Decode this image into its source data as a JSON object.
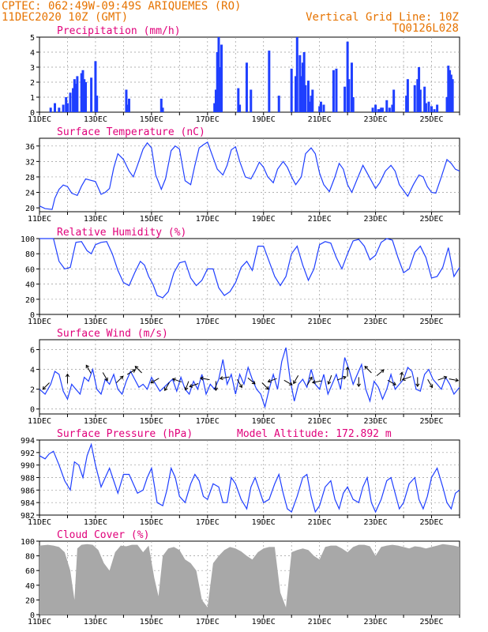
{
  "header": {
    "line1": "CPTEC:  062:49W-09:49S  ARIQUEMES (RO)",
    "line2": "11DEC2020 10Z (GMT)",
    "right1": "Vertical Grid Line: 10Z",
    "right2": "TQ0126L028"
  },
  "colors": {
    "header": "#e67300",
    "title": "#e0007a",
    "series": "#1f3fff",
    "cloud": "#a8a8a8",
    "arrow": "#000000",
    "grid": "#999999"
  },
  "x_axis": {
    "labels": [
      "11DEC",
      "13DEC",
      "15DEC",
      "17DEC",
      "19DEC",
      "21DEC",
      "23DEC",
      "25DEC"
    ],
    "label_days": [
      0,
      2,
      4,
      6,
      8,
      10,
      12,
      14
    ],
    "start": "2020-12-11T10Z",
    "end_day": 15
  },
  "chart_data": [
    {
      "id": "precip",
      "type": "bar",
      "title": "Precipitation (mm/h)",
      "ylim": [
        0,
        5
      ],
      "yticks": [
        0,
        1,
        2,
        3,
        4,
        5
      ],
      "x_unit": "days since 11DEC2020 10Z",
      "x": [
        0.4,
        0.55,
        0.7,
        0.85,
        0.95,
        1.0,
        1.1,
        1.2,
        1.25,
        1.3,
        1.35,
        1.5,
        1.55,
        1.6,
        1.65,
        1.85,
        2.0,
        2.05,
        3.1,
        3.15,
        3.2,
        4.35,
        4.4,
        6.25,
        6.3,
        6.35,
        6.4,
        6.45,
        6.5,
        7.1,
        7.15,
        7.4,
        7.55,
        8.2,
        8.55,
        9.0,
        9.15,
        9.2,
        9.3,
        9.35,
        9.4,
        9.45,
        9.5,
        9.6,
        9.65,
        9.7,
        9.75,
        10.0,
        10.05,
        10.15,
        10.5,
        10.6,
        10.9,
        11.0,
        11.05,
        11.15,
        11.2,
        11.9,
        12.0,
        12.1,
        12.15,
        12.2,
        12.25,
        12.4,
        12.5,
        12.6,
        12.65,
        13.1,
        13.15,
        13.4,
        13.5,
        13.55,
        13.6,
        13.75,
        13.8,
        13.9,
        14.0,
        14.1,
        14.2,
        14.55,
        14.6,
        14.65,
        14.7,
        14.75
      ],
      "values": [
        0.3,
        0.6,
        0.3,
        0.5,
        1.0,
        0.6,
        1.3,
        1.6,
        2.2,
        1.9,
        2.4,
        2.6,
        2.8,
        2.2,
        2.0,
        2.3,
        3.4,
        1.1,
        1.5,
        0.5,
        0.9,
        0.9,
        0.3,
        0.6,
        1.5,
        4.0,
        5.0,
        3.0,
        4.5,
        1.6,
        0.5,
        3.3,
        1.5,
        4.1,
        1.1,
        2.9,
        2.4,
        5.0,
        3.8,
        2.4,
        3.3,
        4.0,
        1.8,
        2.1,
        0.7,
        1.1,
        1.5,
        0.4,
        0.7,
        0.5,
        2.8,
        2.9,
        1.7,
        4.7,
        2.2,
        3.3,
        1.0,
        0.3,
        0.5,
        0.2,
        0.2,
        0.3,
        0.3,
        0.8,
        0.3,
        0.5,
        1.5,
        1.1,
        2.2,
        1.8,
        2.2,
        3.0,
        1.5,
        1.7,
        0.6,
        0.7,
        0.4,
        0.2,
        0.5,
        1.0,
        3.1,
        2.8,
        2.5,
        2.2
      ],
      "xlabel": "",
      "ylabel": ""
    },
    {
      "id": "temp",
      "type": "line",
      "title": "Surface Temperature (nC)",
      "ylim": [
        19,
        38
      ],
      "yticks": [
        20,
        24,
        28,
        32,
        36
      ],
      "x_unit": "days since 11DEC2020 10Z",
      "x": [
        0,
        0.2,
        0.45,
        0.55,
        0.7,
        0.85,
        1.0,
        1.15,
        1.35,
        1.5,
        1.65,
        1.8,
        2.0,
        2.2,
        2.35,
        2.5,
        2.65,
        2.8,
        3.0,
        3.2,
        3.35,
        3.5,
        3.7,
        3.85,
        4.0,
        4.15,
        4.35,
        4.5,
        4.7,
        4.85,
        5.0,
        5.2,
        5.4,
        5.55,
        5.7,
        5.85,
        6.0,
        6.15,
        6.35,
        6.55,
        6.7,
        6.85,
        7.0,
        7.15,
        7.35,
        7.55,
        7.7,
        7.85,
        8.0,
        8.15,
        8.35,
        8.5,
        8.7,
        8.85,
        9.0,
        9.15,
        9.35,
        9.5,
        9.7,
        9.85,
        10.0,
        10.15,
        10.35,
        10.55,
        10.7,
        10.85,
        11.0,
        11.15,
        11.35,
        11.55,
        11.7,
        11.85,
        12.0,
        12.15,
        12.35,
        12.55,
        12.7,
        12.85,
        13.0,
        13.15,
        13.35,
        13.55,
        13.7,
        13.85,
        14.0,
        14.15,
        14.35,
        14.55,
        14.7,
        14.85,
        15.0
      ],
      "values": [
        20.5,
        19.8,
        19.6,
        22.5,
        24.8,
        25.9,
        25.5,
        23.8,
        23.2,
        25.6,
        27.5,
        27.2,
        26.8,
        23.5,
        24.0,
        25.0,
        30.3,
        34.0,
        32.5,
        29.5,
        28.0,
        31.0,
        35.2,
        36.8,
        35.5,
        28.5,
        24.8,
        27.5,
        34.8,
        36.0,
        35.2,
        27.0,
        26.0,
        31.0,
        35.5,
        36.3,
        37.0,
        34.0,
        30.0,
        28.5,
        31.0,
        35.0,
        35.8,
        32.0,
        28.0,
        27.5,
        29.5,
        31.8,
        30.5,
        28.0,
        26.5,
        30.0,
        32.0,
        30.5,
        28.0,
        26.0,
        28.0,
        34.0,
        35.5,
        34.0,
        29.0,
        26.0,
        24.2,
        28.0,
        31.5,
        30.0,
        26.0,
        24.0,
        27.5,
        31.0,
        29.0,
        27.0,
        25.0,
        26.5,
        29.5,
        31.0,
        29.5,
        26.0,
        24.5,
        23.0,
        26.0,
        28.5,
        28.0,
        25.5,
        24.0,
        23.8,
        28.0,
        32.5,
        31.5,
        30.0,
        29.5
      ],
      "xlabel": "",
      "ylabel": ""
    },
    {
      "id": "rh",
      "type": "line",
      "title": "Relative Humidity (%)",
      "ylim": [
        0,
        100
      ],
      "yticks": [
        0,
        20,
        40,
        60,
        80,
        100
      ],
      "x_unit": "days since 11DEC2020 10Z",
      "x": [
        0,
        0.3,
        0.5,
        0.7,
        0.9,
        1.1,
        1.3,
        1.5,
        1.7,
        1.85,
        2.0,
        2.2,
        2.4,
        2.6,
        2.8,
        3.0,
        3.2,
        3.4,
        3.6,
        3.75,
        3.9,
        4.05,
        4.2,
        4.4,
        4.6,
        4.8,
        5.0,
        5.2,
        5.4,
        5.6,
        5.8,
        6.0,
        6.2,
        6.4,
        6.6,
        6.8,
        7.0,
        7.2,
        7.4,
        7.6,
        7.8,
        8.0,
        8.2,
        8.4,
        8.6,
        8.8,
        9.0,
        9.2,
        9.4,
        9.6,
        9.8,
        10.0,
        10.2,
        10.4,
        10.6,
        10.8,
        11.0,
        11.2,
        11.4,
        11.6,
        11.8,
        12.0,
        12.2,
        12.4,
        12.6,
        12.8,
        13.0,
        13.2,
        13.4,
        13.6,
        13.8,
        14.0,
        14.2,
        14.4,
        14.6,
        14.8,
        15.0
      ],
      "values": [
        100,
        100,
        100,
        70,
        60,
        62,
        95,
        96,
        84,
        80,
        92,
        95,
        96,
        80,
        58,
        42,
        38,
        55,
        70,
        65,
        50,
        40,
        25,
        22,
        30,
        55,
        68,
        70,
        48,
        38,
        45,
        60,
        60,
        35,
        25,
        30,
        42,
        62,
        70,
        58,
        90,
        90,
        70,
        50,
        38,
        50,
        80,
        90,
        65,
        45,
        60,
        92,
        96,
        94,
        75,
        60,
        80,
        97,
        99,
        90,
        72,
        78,
        95,
        100,
        98,
        75,
        55,
        60,
        82,
        90,
        75,
        48,
        50,
        62,
        88,
        50,
        62
      ],
      "xlabel": "",
      "ylabel": ""
    },
    {
      "id": "wind",
      "type": "line",
      "title": "Surface Wind (m/s)",
      "ylim": [
        -0.5,
        7
      ],
      "yticks": [
        0,
        2,
        4,
        6
      ],
      "x_unit": "days since 11DEC2020 10Z",
      "x": [
        0,
        0.2,
        0.4,
        0.55,
        0.7,
        0.85,
        1.0,
        1.15,
        1.3,
        1.45,
        1.6,
        1.75,
        1.9,
        2.05,
        2.2,
        2.35,
        2.5,
        2.65,
        2.8,
        2.95,
        3.1,
        3.25,
        3.4,
        3.55,
        3.7,
        3.85,
        4.0,
        4.15,
        4.3,
        4.45,
        4.6,
        4.75,
        4.9,
        5.05,
        5.2,
        5.35,
        5.5,
        5.65,
        5.8,
        5.95,
        6.1,
        6.25,
        6.4,
        6.55,
        6.7,
        6.85,
        7.0,
        7.15,
        7.3,
        7.45,
        7.6,
        7.75,
        7.9,
        8.05,
        8.2,
        8.35,
        8.5,
        8.65,
        8.8,
        8.95,
        9.1,
        9.25,
        9.4,
        9.55,
        9.7,
        9.85,
        10.0,
        10.15,
        10.3,
        10.45,
        10.6,
        10.75,
        10.9,
        11.05,
        11.2,
        11.35,
        11.5,
        11.65,
        11.8,
        11.95,
        12.1,
        12.25,
        12.4,
        12.55,
        12.7,
        12.85,
        13.0,
        13.15,
        13.3,
        13.45,
        13.6,
        13.75,
        13.9,
        14.05,
        14.2,
        14.35,
        14.5,
        14.65,
        14.8,
        15.0
      ],
      "values": [
        2.0,
        1.5,
        2.5,
        3.8,
        3.5,
        1.8,
        1.0,
        2.5,
        2.0,
        1.5,
        3.2,
        2.8,
        4.0,
        2.0,
        1.5,
        3.0,
        2.5,
        3.5,
        2.0,
        1.5,
        2.8,
        3.8,
        3.0,
        2.2,
        2.5,
        2.0,
        3.2,
        2.5,
        1.8,
        2.2,
        2.6,
        3.0,
        1.8,
        3.2,
        2.0,
        1.5,
        2.8,
        2.0,
        3.5,
        1.5,
        2.5,
        2.0,
        3.0,
        5.0,
        2.5,
        3.5,
        1.5,
        3.5,
        2.5,
        4.2,
        3.0,
        2.0,
        1.5,
        0.2,
        2.0,
        3.5,
        2.0,
        4.8,
        6.2,
        3.0,
        0.8,
        2.5,
        3.0,
        2.2,
        4.0,
        2.5,
        2.0,
        3.5,
        1.5,
        2.5,
        3.5,
        2.0,
        5.2,
        4.0,
        2.5,
        3.5,
        4.5,
        2.0,
        0.8,
        2.8,
        2.2,
        1.0,
        2.0,
        3.5,
        2.0,
        2.5,
        3.0,
        4.2,
        3.8,
        2.0,
        1.8,
        3.5,
        4.0,
        3.0,
        2.5,
        2.0,
        3.2,
        2.5,
        1.5,
        2.2
      ],
      "arrows_x": [
        0.3,
        1.0,
        1.8,
        2.3,
        2.8,
        3.2,
        3.6,
        4.2,
        4.6,
        5.0,
        5.3,
        5.6,
        6.0,
        6.3,
        6.7,
        7.1,
        7.5,
        8.0,
        8.4,
        8.8,
        9.2,
        9.6,
        10.0,
        10.4,
        10.7,
        11.0,
        11.4,
        11.8,
        12.1,
        12.5,
        12.9,
        13.2,
        13.5,
        13.9,
        14.3,
        14.7
      ],
      "arrows_y": [
        2.5,
        2.8,
        3.8,
        3.5,
        2.8,
        3.6,
        3.8,
        3.0,
        2.5,
        2.8,
        2.6,
        2.5,
        3.0,
        2.6,
        3.2,
        2.8,
        3.0,
        2.5,
        3.0,
        2.8,
        3.2,
        2.6,
        2.8,
        3.2,
        3.0,
        3.5,
        3.0,
        3.8,
        3.5,
        2.8,
        3.0,
        3.2,
        3.0,
        2.8,
        3.0,
        3.0
      ],
      "arrows_dir": [
        225,
        90,
        120,
        300,
        45,
        30,
        135,
        210,
        240,
        160,
        250,
        200,
        170,
        270,
        190,
        300,
        320,
        315,
        200,
        330,
        240,
        60,
        190,
        250,
        20,
        90,
        270,
        135,
        40,
        330,
        80,
        200,
        270,
        300,
        20,
        350
      ],
      "xlabel": "",
      "ylabel": ""
    },
    {
      "id": "pressure",
      "type": "line",
      "title": "Surface Pressure (hPa)",
      "subtitle": "Model Altitude: 172.892  m",
      "ylim": [
        982,
        994
      ],
      "yticks": [
        982,
        984,
        986,
        988,
        990,
        992,
        994
      ],
      "x_unit": "days since 11DEC2020 10Z",
      "x": [
        0,
        0.2,
        0.35,
        0.5,
        0.7,
        0.9,
        1.1,
        1.25,
        1.4,
        1.55,
        1.7,
        1.85,
        2.0,
        2.2,
        2.35,
        2.5,
        2.65,
        2.8,
        3.0,
        3.2,
        3.35,
        3.5,
        3.7,
        3.85,
        4.0,
        4.2,
        4.4,
        4.55,
        4.7,
        4.85,
        5.0,
        5.2,
        5.4,
        5.55,
        5.7,
        5.85,
        6.0,
        6.2,
        6.4,
        6.55,
        6.7,
        6.85,
        7.0,
        7.2,
        7.4,
        7.55,
        7.7,
        7.85,
        8.0,
        8.2,
        8.4,
        8.55,
        8.7,
        8.85,
        9.0,
        9.2,
        9.4,
        9.55,
        9.7,
        9.85,
        10.0,
        10.2,
        10.4,
        10.55,
        10.7,
        10.85,
        11.0,
        11.2,
        11.4,
        11.55,
        11.7,
        11.85,
        12.0,
        12.2,
        12.4,
        12.55,
        12.7,
        12.85,
        13.0,
        13.2,
        13.4,
        13.55,
        13.7,
        13.85,
        14.0,
        14.2,
        14.4,
        14.55,
        14.7,
        14.85,
        15.0
      ],
      "values": [
        991.5,
        991.0,
        991.8,
        992.2,
        990.0,
        987.5,
        986.0,
        990.5,
        990.0,
        988.0,
        991.5,
        993.3,
        990.0,
        986.5,
        988.0,
        989.5,
        987.5,
        985.5,
        988.5,
        988.5,
        987.0,
        985.5,
        986.0,
        988.0,
        989.5,
        984.0,
        983.5,
        986.0,
        989.5,
        988.0,
        985.0,
        984.0,
        987.0,
        988.5,
        987.5,
        985.0,
        984.5,
        987.0,
        986.5,
        984.0,
        984.0,
        988.0,
        987.0,
        984.5,
        983.0,
        986.5,
        988.0,
        986.0,
        984.0,
        984.5,
        987.0,
        988.5,
        985.5,
        983.0,
        982.5,
        985.0,
        988.0,
        988.5,
        985.0,
        982.5,
        983.5,
        986.5,
        987.5,
        984.5,
        983.0,
        985.5,
        986.5,
        984.5,
        984.0,
        986.5,
        988.0,
        984.0,
        982.5,
        984.5,
        987.5,
        988.0,
        985.5,
        983.0,
        984.0,
        987.0,
        988.0,
        984.5,
        983.0,
        985.0,
        988.0,
        989.5,
        986.5,
        984.0,
        983.0,
        985.5,
        986.0
      ],
      "xlabel": "",
      "ylabel": ""
    },
    {
      "id": "cloud",
      "type": "area",
      "title": "Cloud Cover (%)",
      "ylim": [
        0,
        100
      ],
      "yticks": [
        0,
        20,
        40,
        60,
        80,
        100
      ],
      "x_unit": "days since 11DEC2020 10Z",
      "x": [
        0,
        0.3,
        0.5,
        0.7,
        0.9,
        1.1,
        1.25,
        1.35,
        1.5,
        1.7,
        1.9,
        2.1,
        2.3,
        2.5,
        2.7,
        2.9,
        3.1,
        3.3,
        3.5,
        3.7,
        3.9,
        4.1,
        4.25,
        4.4,
        4.6,
        4.8,
        5.0,
        5.2,
        5.4,
        5.6,
        5.8,
        6.0,
        6.2,
        6.4,
        6.6,
        6.8,
        7.0,
        7.2,
        7.4,
        7.6,
        7.8,
        8.0,
        8.2,
        8.4,
        8.6,
        8.8,
        9.0,
        9.2,
        9.4,
        9.6,
        9.8,
        10.0,
        10.2,
        10.4,
        10.6,
        10.8,
        11.0,
        11.2,
        11.4,
        11.6,
        11.8,
        12.0,
        12.2,
        12.4,
        12.6,
        12.8,
        13.0,
        13.2,
        13.4,
        13.6,
        13.8,
        14.0,
        14.2,
        14.4,
        14.6,
        14.8,
        15.0
      ],
      "values": [
        94,
        95,
        94,
        92,
        85,
        60,
        20,
        90,
        95,
        96,
        95,
        88,
        70,
        60,
        85,
        94,
        93,
        95,
        95,
        85,
        94,
        50,
        25,
        80,
        90,
        92,
        88,
        75,
        70,
        60,
        20,
        10,
        70,
        80,
        88,
        92,
        90,
        86,
        80,
        75,
        85,
        90,
        92,
        92,
        30,
        10,
        85,
        88,
        90,
        88,
        80,
        75,
        92,
        94,
        94,
        90,
        85,
        92,
        95,
        95,
        93,
        80,
        92,
        94,
        95,
        94,
        92,
        90,
        93,
        92,
        90,
        92,
        94,
        96,
        95,
        94,
        92
      ],
      "xlabel": "",
      "ylabel": ""
    }
  ]
}
